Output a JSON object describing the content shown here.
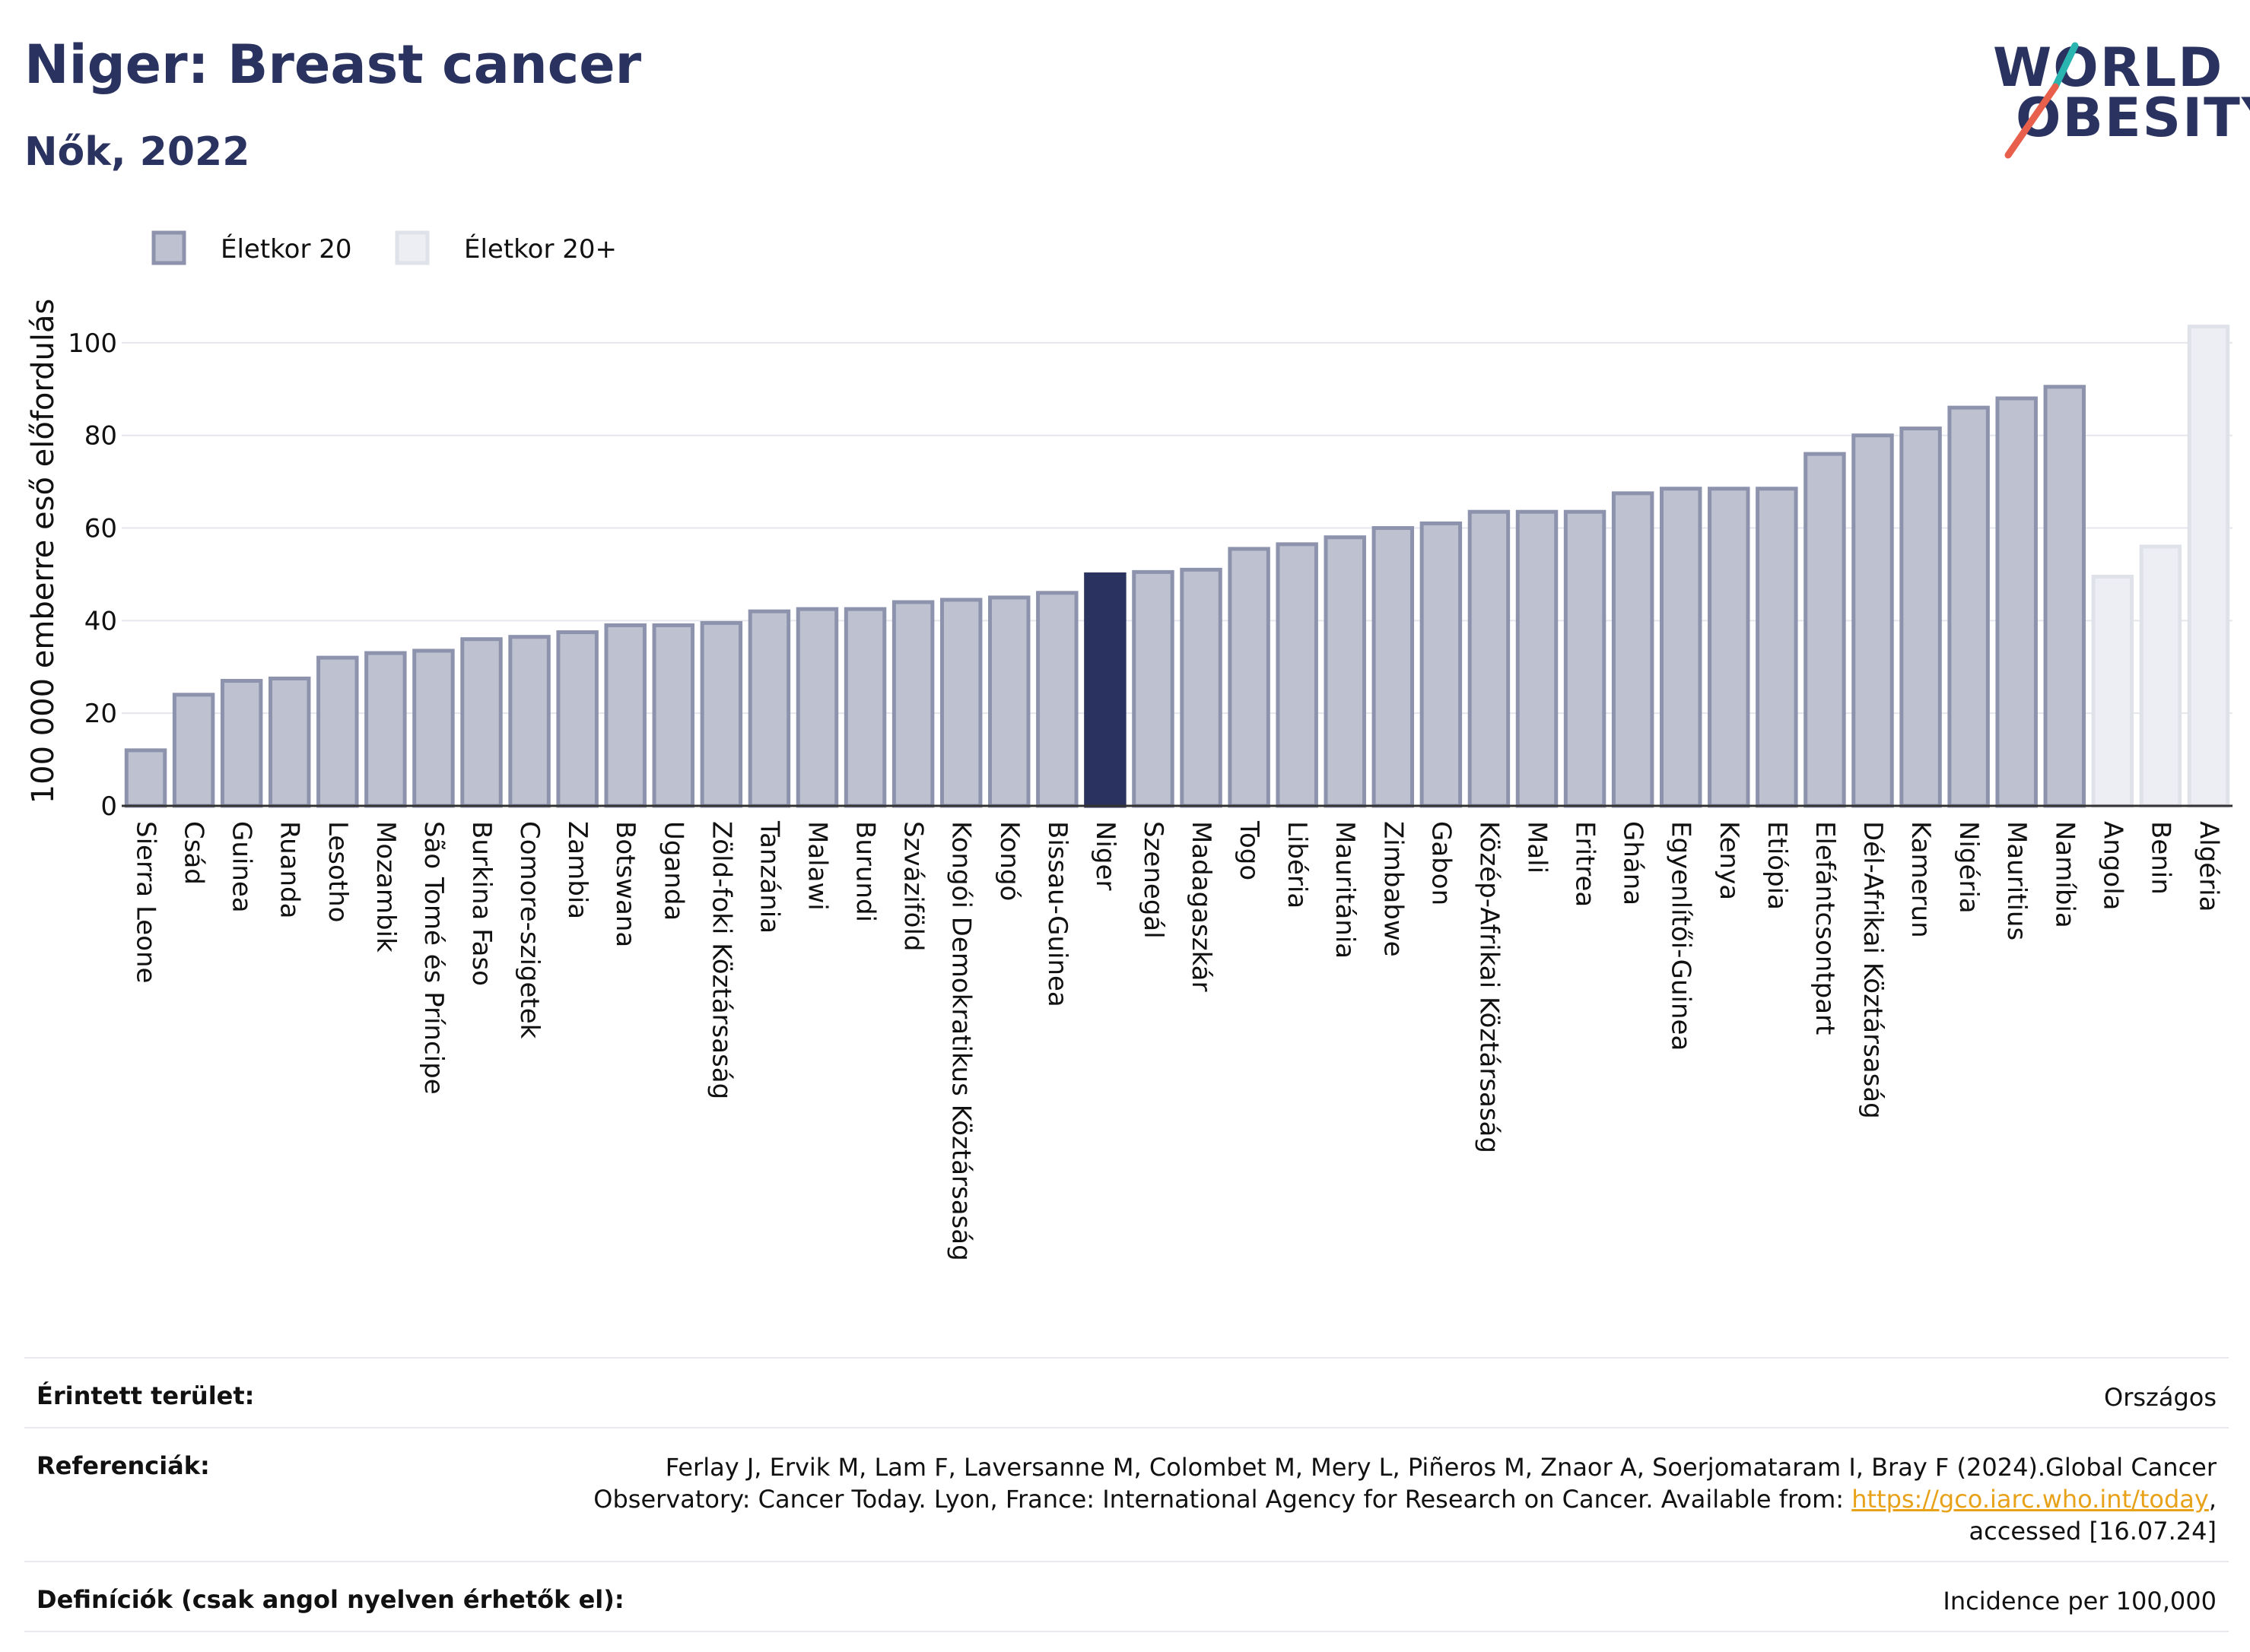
{
  "header": {
    "title": "Niger: Breast cancer",
    "subtitle": "Nők, 2022"
  },
  "logo": {
    "line1": "WORLD",
    "line2": "OBESITY",
    "colors": {
      "navy": "#2a3360",
      "teal": "#2ab5b0",
      "coral": "#e8604c"
    }
  },
  "chart_data": {
    "type": "bar",
    "ylabel": "100 000 emberre eső előfordulás",
    "ylim": [
      0,
      110
    ],
    "yticks": [
      0,
      20,
      40,
      60,
      80,
      100
    ],
    "grid": true,
    "legend": [
      {
        "label": "Életkor 20",
        "color": "#bec2d0",
        "border": "#8d93ad"
      },
      {
        "label": "Életkor 20+",
        "color": "#eceef3",
        "border": "#e0e2ea"
      }
    ],
    "legend_position": "top-left",
    "categories": [
      "Sierra Leone",
      "Csád",
      "Guinea",
      "Ruanda",
      "Lesotho",
      "Mozambik",
      "São Tomé és Príncipe",
      "Burkina Faso",
      "Comore-szigetek",
      "Zambia",
      "Botswana",
      "Uganda",
      "Zöld-foki Köztársaság",
      "Tanzánia",
      "Malawi",
      "Burundi",
      "Szváziföld",
      "Kongói Demokratikus Köztársaság",
      "Kongó",
      "Bissau-Guinea",
      "Niger",
      "Szenegál",
      "Madagaszkár",
      "Togo",
      "Libéria",
      "Mauritánia",
      "Zimbabwe",
      "Gabon",
      "Közép-Afrikai Köztársaság",
      "Mali",
      "Eritrea",
      "Ghána",
      "Egyenlítői-Guinea",
      "Kenya",
      "Etiópia",
      "Elefántcsontpart",
      "Dél-Afrikai Köztársaság",
      "Kamerun",
      "Nigéria",
      "Mauritius",
      "Namíbia",
      "Angola",
      "Benin",
      "Algéria"
    ],
    "values": [
      12,
      24,
      27,
      27.5,
      32,
      33,
      33.5,
      36,
      36.5,
      37.5,
      39,
      39,
      39.5,
      42,
      42.5,
      42.5,
      44,
      44.5,
      45,
      46,
      50,
      50.5,
      51,
      55.5,
      56.5,
      58,
      60,
      61,
      63.5,
      63.5,
      63.5,
      67.5,
      68.5,
      68.5,
      68.5,
      76,
      80,
      81.5,
      86,
      88,
      90.5,
      49.5,
      56,
      103.5
    ],
    "series_group": [
      "20",
      "20",
      "20",
      "20",
      "20",
      "20",
      "20",
      "20",
      "20",
      "20",
      "20",
      "20",
      "20",
      "20",
      "20",
      "20",
      "20",
      "20",
      "20",
      "20",
      "highlight",
      "20",
      "20",
      "20",
      "20",
      "20",
      "20",
      "20",
      "20",
      "20",
      "20",
      "20",
      "20",
      "20",
      "20",
      "20",
      "20",
      "20",
      "20",
      "20",
      "20",
      "20+",
      "20+",
      "20+"
    ],
    "highlight": "Niger",
    "colors": {
      "age20_fill": "#bec2d0",
      "age20_border": "#8d93ad",
      "age20plus_fill": "#eceef3",
      "age20plus_border": "#e0e2ea",
      "highlight": "#2a3360",
      "grid": "#e6e7ee",
      "axis": "#333333"
    }
  },
  "footer": {
    "rows": [
      {
        "label": "Érintett terület:",
        "value": "Országos"
      },
      {
        "label": "Referenciák:",
        "value_lines": [
          "Ferlay J, Ervik M, Lam F, Laversanne M, Colombet M, Mery L, Piñeros M, Znaor A, Soerjomataram I, Bray F (2024).Global Cancer",
          "Observatory: Cancer Today. Lyon, France: International Agency for Research on Cancer. Available from: "
        ],
        "link": "https://gco.iarc.who.int/today",
        "after_link": ",",
        "last_line": "accessed [16.07.24]"
      },
      {
        "label": "Definíciók (csak angol nyelven érhetők el):",
        "value": "Incidence per 100,000"
      }
    ]
  }
}
